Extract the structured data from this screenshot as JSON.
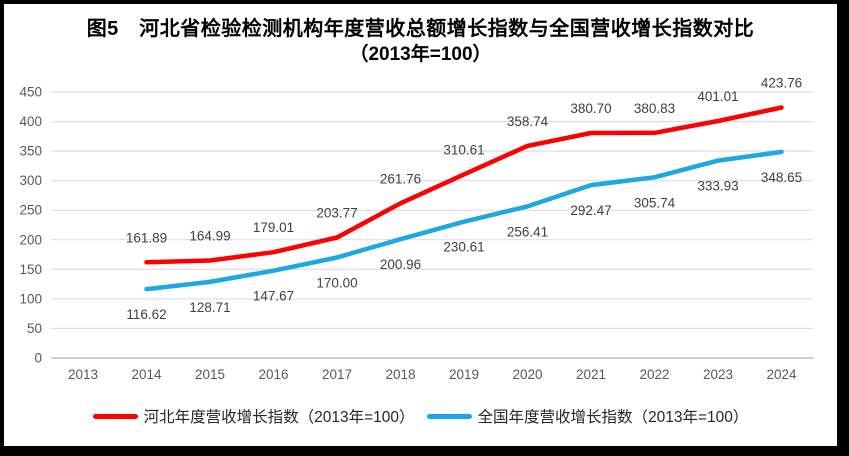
{
  "chart_data": {
    "type": "line",
    "title": "图5　河北省检验检测机构年度营收总额增长指数与全国营收增长指数对比",
    "subtitle": "（2013年=100）",
    "categories": [
      "2013",
      "2014",
      "2015",
      "2016",
      "2017",
      "2018",
      "2019",
      "2020",
      "2021",
      "2022",
      "2023",
      "2024"
    ],
    "series": [
      {
        "name": "河北年度营收增长指数（2013年=100）",
        "color": "#FE0000",
        "label_position": "above",
        "values": [
          null,
          161.89,
          164.99,
          179.01,
          203.77,
          261.76,
          310.61,
          358.74,
          380.7,
          380.83,
          401.01,
          423.76
        ]
      },
      {
        "name": "全国年度营收增长指数（2013年=100）",
        "color": "#1EA7E1",
        "label_position": "below",
        "values": [
          null,
          116.62,
          128.71,
          147.67,
          170.0,
          200.96,
          230.61,
          256.41,
          292.47,
          305.74,
          333.93,
          348.65
        ]
      }
    ],
    "ylim": [
      0,
      450
    ],
    "yticks": [
      0,
      50,
      100,
      150,
      200,
      250,
      300,
      350,
      400,
      450
    ],
    "grid": "horizontal",
    "legend_position": "bottom",
    "data_labels_decimals": 2,
    "colors": {
      "gridline": "#D9D9D9",
      "axis_line": "#9B9B9B",
      "tick_label": "#595959",
      "data_label": "#404040",
      "title": "#000000",
      "frame_border": "#000000",
      "background": "#FFFFFF"
    }
  }
}
